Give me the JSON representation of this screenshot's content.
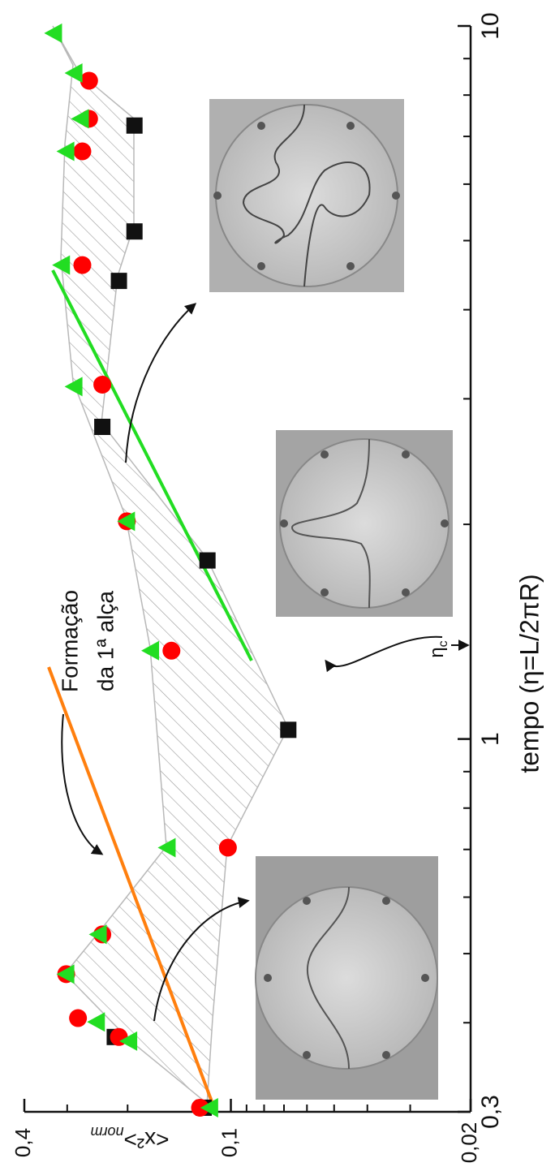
{
  "chart_data": {
    "type": "scatter",
    "xlabel": "tempo (η=L/2πR)",
    "ylabel": "<x²>",
    "ylabel_sub": "norm",
    "annotations": [
      "Formação",
      "da 1ª alça"
    ],
    "eta_label": "η",
    "eta_sub": "c",
    "xscale": "log",
    "yscale": "log",
    "xlim": [
      0.3,
      10
    ],
    "ylim": [
      0.02,
      0.4
    ],
    "xticks": [
      {
        "value": 0.3,
        "label": "0,3"
      },
      1,
      10
    ],
    "yticks": [
      {
        "value": 0.4,
        "label": "0,4"
      },
      {
        "value": 0.1,
        "label": "0,1"
      },
      {
        "value": 0.02,
        "label": "0,02"
      }
    ],
    "xminorticks": [
      0.4,
      0.5,
      0.6,
      0.7,
      0.8,
      0.9,
      2,
      3,
      4,
      5,
      6,
      7,
      8,
      9
    ],
    "yminorticks": [
      0.03,
      0.04,
      0.05,
      0.06,
      0.07,
      0.08,
      0.09,
      0.2,
      0.3
    ],
    "series": [
      {
        "marker": "square",
        "color": "#111111",
        "x": [
          0.304,
          0.382,
          1.03,
          1.78,
          2.74,
          4.39,
          5.15,
          7.25
        ],
        "values": [
          0.12,
          0.218,
          0.068,
          0.117,
          0.237,
          0.212,
          0.191,
          0.191
        ]
      },
      {
        "marker": "circle",
        "color": "#ff0000",
        "x": [
          0.304,
          0.382,
          0.406,
          0.468,
          0.532,
          0.704,
          1.33,
          2.02,
          3.14,
          4.62,
          6.67,
          7.41,
          8.38
        ],
        "values": [
          0.123,
          0.212,
          0.279,
          0.302,
          0.237,
          0.102,
          0.149,
          0.201,
          0.237,
          0.271,
          0.271,
          0.259,
          0.259
        ]
      },
      {
        "marker": "triangle",
        "color": "#22dd22",
        "x": [
          0.304,
          0.377,
          0.401,
          0.468,
          0.532,
          0.704,
          1.33,
          2.02,
          3.12,
          4.62,
          6.67,
          7.41,
          8.59,
          9.77
        ],
        "values": [
          0.115,
          0.198,
          0.246,
          0.302,
          0.243,
          0.153,
          0.171,
          0.201,
          0.286,
          0.311,
          0.302,
          0.274,
          0.286,
          0.328
        ]
      }
    ]
  }
}
